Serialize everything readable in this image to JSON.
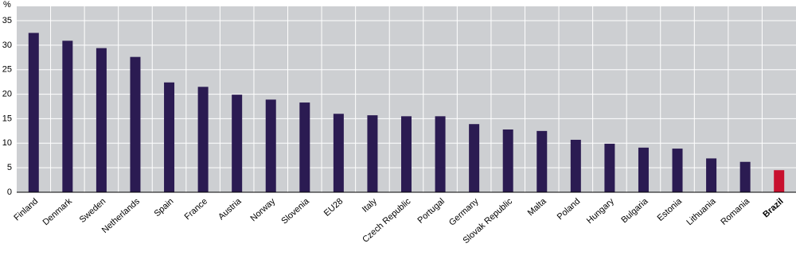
{
  "chart_data": {
    "type": "bar",
    "y_label": "%",
    "categories": [
      "Finland",
      "Denmark",
      "Sweden",
      "Netherlands",
      "Spain",
      "France",
      "Austria",
      "Norway",
      "Slovenia",
      "EU28",
      "Italy",
      "Czech Republic",
      "Portugal",
      "Germany",
      "Slovak Republic",
      "Malta",
      "Poland",
      "Hungary",
      "Bulgaria",
      "Estonia",
      "Lithuania",
      "Romania",
      "Brazil"
    ],
    "values": [
      32.5,
      30.9,
      29.4,
      27.6,
      22.4,
      21.5,
      19.9,
      18.9,
      18.3,
      16.0,
      15.7,
      15.5,
      15.5,
      13.9,
      12.8,
      12.5,
      10.7,
      9.9,
      9.1,
      8.9,
      6.9,
      6.2,
      4.5
    ],
    "color": "#2b1b52",
    "highlight": {
      "category": "Brazil",
      "color": "#c8102e"
    },
    "ylim": [
      0,
      35
    ],
    "yticks": [
      0,
      5,
      10,
      15,
      20,
      25,
      30,
      35
    ],
    "grid": true
  }
}
